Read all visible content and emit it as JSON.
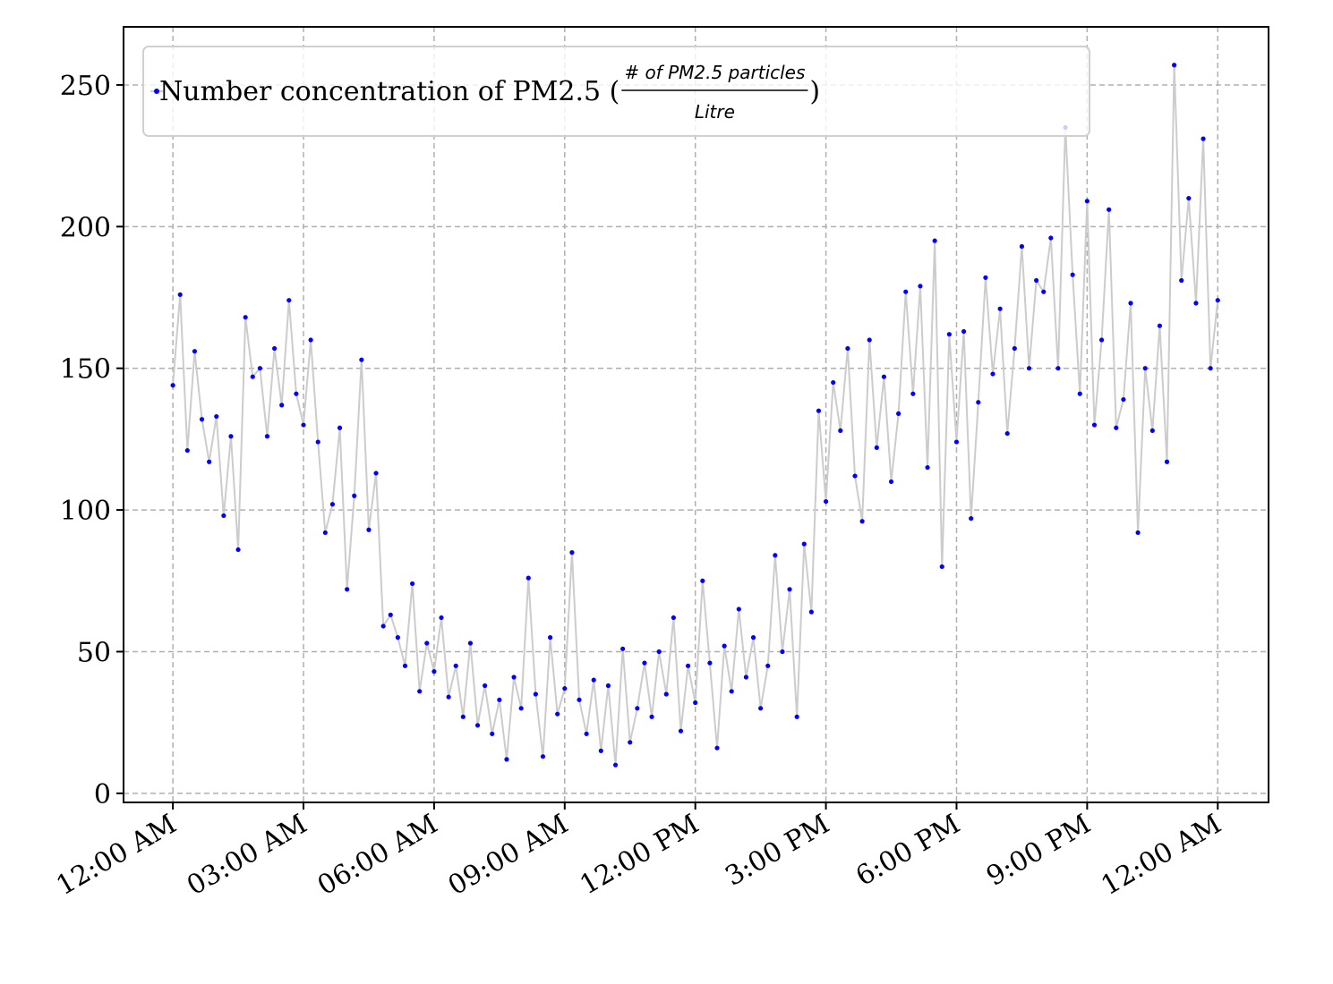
{
  "chart_data": {
    "type": "line",
    "legend": {
      "prefix": "Number concentration of PM2.5 (",
      "numerator": "# of PM2.5 particles",
      "denominator": "Litre",
      "suffix": ")"
    },
    "x": [
      0,
      10,
      20,
      30,
      40,
      50,
      60,
      70,
      80,
      90,
      100,
      110,
      120,
      130,
      140,
      150,
      160,
      170,
      180,
      190,
      200,
      210,
      220,
      230,
      240,
      250,
      260,
      270,
      280,
      290,
      300,
      310,
      320,
      330,
      340,
      350,
      360,
      370,
      380,
      390,
      400,
      410,
      420,
      430,
      440,
      450,
      460,
      470,
      480,
      490,
      500,
      510,
      520,
      530,
      540,
      550,
      560,
      570,
      580,
      590,
      600,
      610,
      620,
      630,
      640,
      650,
      660,
      670,
      680,
      690,
      700,
      710,
      720,
      730,
      740,
      750,
      760,
      770,
      780,
      790,
      800,
      810,
      820,
      830,
      840,
      850,
      860,
      870,
      880,
      890,
      900,
      910,
      920,
      930,
      940,
      950,
      960,
      970,
      980,
      990,
      1000,
      1010,
      1020,
      1030,
      1040,
      1050,
      1060,
      1070,
      1080,
      1090,
      1100,
      1110,
      1120,
      1130,
      1140,
      1150,
      1160,
      1170,
      1180,
      1190,
      1200,
      1210,
      1220,
      1230,
      1240,
      1250,
      1260,
      1270,
      1280,
      1290,
      1300,
      1310,
      1320,
      1330,
      1340,
      1350,
      1360,
      1370,
      1380,
      1390,
      1400,
      1410,
      1420,
      1430,
      1440
    ],
    "series": [
      {
        "line_color": "#cccccc",
        "color": "#0000ff",
        "values": [
          144,
          176,
          121,
          156,
          132,
          117,
          133,
          98,
          126,
          86,
          168,
          147,
          150,
          126,
          157,
          137,
          174,
          141,
          130,
          160,
          124,
          92,
          102,
          129,
          72,
          105,
          153,
          93,
          113,
          59,
          63,
          55,
          45,
          74,
          36,
          53,
          43,
          62,
          34,
          45,
          27,
          53,
          24,
          38,
          21,
          33,
          12,
          41,
          30,
          76,
          35,
          13,
          55,
          28,
          37,
          85,
          33,
          21,
          40,
          15,
          38,
          10,
          51,
          18,
          30,
          46,
          27,
          50,
          35,
          62,
          22,
          45,
          32,
          75,
          46,
          16,
          52,
          36,
          65,
          41,
          55,
          30,
          45,
          84,
          50,
          72,
          27,
          88,
          64,
          135,
          103,
          145,
          128,
          157,
          112,
          96,
          160,
          122,
          147,
          110,
          134,
          177,
          141,
          179,
          115,
          195,
          80,
          162,
          124,
          163,
          97,
          138,
          182,
          148,
          171,
          127,
          157,
          193,
          150,
          181,
          177,
          196,
          150,
          235,
          183,
          141,
          209,
          130,
          160,
          206,
          129,
          139,
          173,
          92,
          150,
          128,
          165,
          117,
          257,
          181,
          210,
          173,
          231,
          150,
          174
        ]
      }
    ],
    "xlim": [
      -68,
      1510
    ],
    "xticks": [
      {
        "value": 0,
        "label": "12:00 AM"
      },
      {
        "value": 180,
        "label": "03:00 AM"
      },
      {
        "value": 360,
        "label": "06:00 AM"
      },
      {
        "value": 540,
        "label": "09:00 AM"
      },
      {
        "value": 720,
        "label": "12:00 PM"
      },
      {
        "value": 900,
        "label": "3:00 PM"
      },
      {
        "value": 1080,
        "label": "6:00 PM"
      },
      {
        "value": 1260,
        "label": "9:00 PM"
      },
      {
        "value": 1440,
        "label": "12:00 AM"
      }
    ],
    "ylim": [
      -3.2,
      270.5
    ],
    "yticks": [
      0,
      50,
      100,
      150,
      200,
      250
    ],
    "grid": true
  }
}
